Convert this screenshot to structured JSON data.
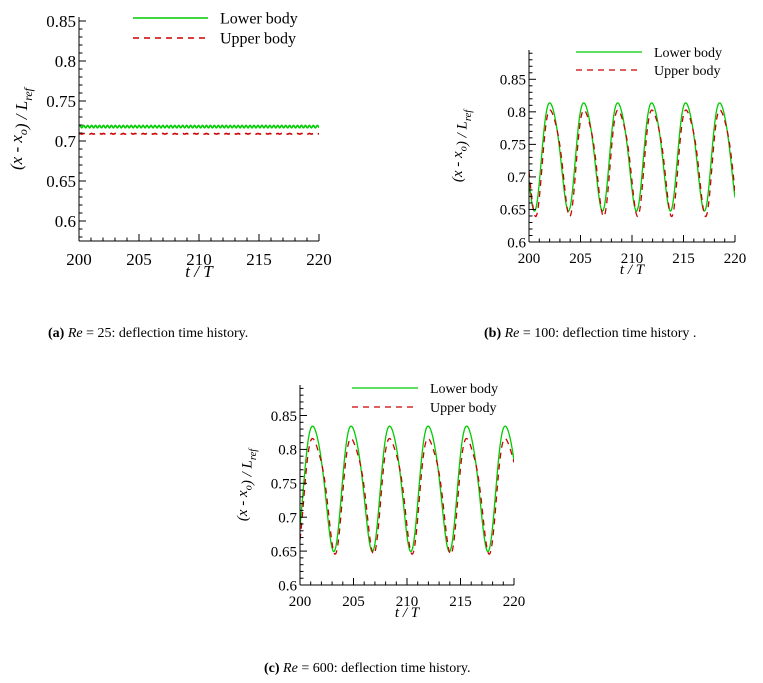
{
  "chart_data": [
    {
      "id": "a",
      "type": "line",
      "xlabel": "t / T",
      "ylabel": "(x - x_o) / L_ref",
      "xlim": [
        200,
        220
      ],
      "ylim": [
        0.575,
        0.855
      ],
      "xticks": [
        200,
        205,
        210,
        215,
        220
      ],
      "xtick_labels": [
        "200",
        "205",
        "210",
        "215",
        "220"
      ],
      "yticks": [
        0.6,
        0.65,
        0.7,
        0.75,
        0.8,
        0.85
      ],
      "ytick_labels": [
        "0.6",
        "0.65",
        "0.7",
        "0.75",
        "0.8",
        "0.85"
      ],
      "legend": "top-right",
      "series": [
        {
          "name": "Lower body",
          "color": "#00cc00",
          "style": "solid",
          "model": {
            "mean": 0.718,
            "amp": 0.0015,
            "period": 0.33,
            "phase": 0,
            "sharp": 0
          }
        },
        {
          "name": "Upper body",
          "color": "#cc0000",
          "style": "dashed",
          "model": {
            "mean": 0.709,
            "amp": 0.0004,
            "period": 0.33,
            "phase": 0,
            "sharp": 0
          }
        }
      ],
      "caption": {
        "letter": "(a)",
        "re_value": "25",
        "suffix": ": deflection time history."
      }
    },
    {
      "id": "b",
      "type": "line",
      "xlabel": "t / T",
      "ylabel": "(x - x_o) / L_ref",
      "xlim": [
        200,
        220
      ],
      "ylim": [
        0.6,
        0.895
      ],
      "xticks": [
        200,
        205,
        210,
        215,
        220
      ],
      "xtick_labels": [
        "200",
        "205",
        "210",
        "215",
        "220"
      ],
      "yticks": [
        0.6,
        0.65,
        0.7,
        0.75,
        0.8,
        0.85
      ],
      "ytick_labels": [
        "0.6",
        "0.65",
        "0.7",
        "0.75",
        "0.8",
        "0.85"
      ],
      "legend": "top-right",
      "series": [
        {
          "name": "Lower body",
          "color": "#00cc00",
          "style": "solid",
          "model": {
            "mean": 0.738,
            "amp": 0.088,
            "period": 3.3,
            "phase": 201.3,
            "sharp": 0.12
          }
        },
        {
          "name": "Upper body",
          "color": "#cc0000",
          "style": "dashed",
          "model": {
            "mean": 0.731,
            "amp": 0.088,
            "period": 3.3,
            "phase": 201.4,
            "sharp": 0.18
          }
        }
      ],
      "caption": {
        "letter": "(b)",
        "re_value": "100",
        "suffix": ": deflection time history ."
      }
    },
    {
      "id": "c",
      "type": "line",
      "xlabel": "t / T",
      "ylabel": "(x - x_o) / L_ref",
      "xlim": [
        200,
        220
      ],
      "ylim": [
        0.6,
        0.895
      ],
      "xticks": [
        200,
        205,
        210,
        215,
        220
      ],
      "xtick_labels": [
        "200",
        "205",
        "210",
        "215",
        "220"
      ],
      "yticks": [
        0.6,
        0.65,
        0.7,
        0.75,
        0.8,
        0.85
      ],
      "ytick_labels": [
        "0.6",
        "0.65",
        "0.7",
        "0.75",
        "0.8",
        "0.85"
      ],
      "legend": "top-right",
      "series": [
        {
          "name": "Lower body",
          "color": "#00cc00",
          "style": "solid",
          "model": {
            "mean": 0.75,
            "amp": 0.098,
            "period": 3.6,
            "phase": 200.4,
            "sharp": 0.12
          }
        },
        {
          "name": "Upper body",
          "color": "#cc0000",
          "style": "dashed",
          "model": {
            "mean": 0.742,
            "amp": 0.092,
            "period": 3.6,
            "phase": 200.5,
            "sharp": 0.2
          }
        }
      ],
      "caption": {
        "letter": "(c)",
        "re_value": "600",
        "suffix": ": deflection time history."
      }
    }
  ],
  "caption_re_label": "Re",
  "caption_equals": " = "
}
